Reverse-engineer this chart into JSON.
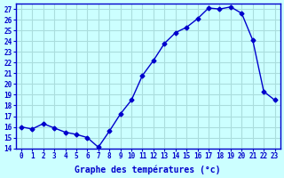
{
  "hours": [
    0,
    1,
    2,
    3,
    4,
    5,
    6,
    7,
    8,
    9,
    10,
    11,
    12,
    13,
    14,
    15,
    16,
    17,
    18,
    19,
    20,
    21,
    22,
    23
  ],
  "temperatures": [
    16.0,
    15.8,
    16.3,
    15.9,
    15.5,
    15.3,
    15.0,
    14.1,
    15.6,
    17.2,
    18.5,
    20.8,
    22.2,
    23.8,
    24.8,
    25.3,
    26.1,
    27.1,
    27.0,
    27.2,
    26.6,
    24.1,
    19.3,
    18.5
  ],
  "xlim": [
    -0.5,
    23.5
  ],
  "ylim": [
    14,
    27.5
  ],
  "yticks": [
    14,
    15,
    16,
    17,
    18,
    19,
    20,
    21,
    22,
    23,
    24,
    25,
    26,
    27
  ],
  "xticks": [
    0,
    1,
    2,
    3,
    4,
    5,
    6,
    7,
    8,
    9,
    10,
    11,
    12,
    13,
    14,
    15,
    16,
    17,
    18,
    19,
    20,
    21,
    22,
    23
  ],
  "xlabel": "Graphe des températures (°c)",
  "line_color": "#0000cc",
  "marker": "D",
  "marker_size": 2.5,
  "bg_color": "#ccffff",
  "grid_color": "#aadddd",
  "axis_label_color": "#0000cc",
  "tick_color": "#0000cc"
}
